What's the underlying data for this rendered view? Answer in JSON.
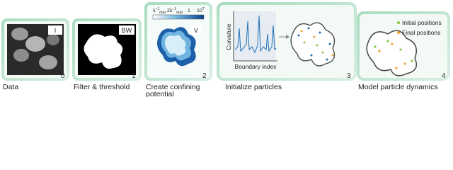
{
  "panels": [
    {
      "number": "0",
      "caption_lines": [
        "Data"
      ],
      "tag": "I"
    },
    {
      "number": "1",
      "caption_lines": [
        "Filter & threshold"
      ],
      "tag": "BW"
    },
    {
      "number": "2",
      "caption_lines": [
        "Create confining",
        "potential"
      ],
      "tag": "V"
    },
    {
      "number": "3",
      "caption_lines": [
        "Initialize particles"
      ]
    },
    {
      "number": "4",
      "caption_lines": [
        "Model particle dynamics"
      ]
    }
  ],
  "colorbar": {
    "left": {
      "base": "λ",
      "sup": "−1",
      "sub": "max"
    },
    "middle": {
      "base": "2λ",
      "sup": "−1",
      "sub": "max"
    },
    "one": "1",
    "right": {
      "base": "10",
      "sup": "7"
    }
  },
  "plot": {
    "y_label": "Curvature",
    "x_label": "Boundary index"
  },
  "legend": [
    {
      "label": "Initial positions",
      "color": "#8bc34a"
    },
    {
      "label": "Final positions",
      "color": "#f0a030"
    }
  ]
}
